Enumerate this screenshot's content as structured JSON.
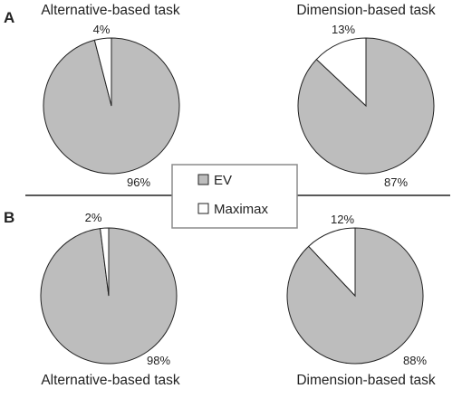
{
  "panels": [
    {
      "letter": "A"
    },
    {
      "letter": "B"
    }
  ],
  "legend": {
    "items": [
      {
        "label": "EV",
        "color": "#bdbdbd"
      },
      {
        "label": "Maximax",
        "color": "#ffffff"
      }
    ]
  },
  "colors": {
    "ev": "#bdbdbd",
    "maximax": "#ffffff",
    "stroke": "#222222"
  },
  "chart_data": [
    {
      "type": "pie",
      "panel": "A",
      "title": "Alternative-based task",
      "slices": [
        {
          "name": "EV",
          "value": 96,
          "label": "96%"
        },
        {
          "name": "Maximax",
          "value": 4,
          "label": "4%"
        }
      ]
    },
    {
      "type": "pie",
      "panel": "A",
      "title": "Dimension-based task",
      "slices": [
        {
          "name": "EV",
          "value": 87,
          "label": "87%"
        },
        {
          "name": "Maximax",
          "value": 13,
          "label": "13%"
        }
      ]
    },
    {
      "type": "pie",
      "panel": "B",
      "title": "Alternative-based task",
      "slices": [
        {
          "name": "EV",
          "value": 98,
          "label": "98%"
        },
        {
          "name": "Maximax",
          "value": 2,
          "label": "2%"
        }
      ]
    },
    {
      "type": "pie",
      "panel": "B",
      "title": "Dimension-based task",
      "slices": [
        {
          "name": "EV",
          "value": 88,
          "label": "88%"
        },
        {
          "name": "Maximax",
          "value": 12,
          "label": "12%"
        }
      ]
    }
  ]
}
